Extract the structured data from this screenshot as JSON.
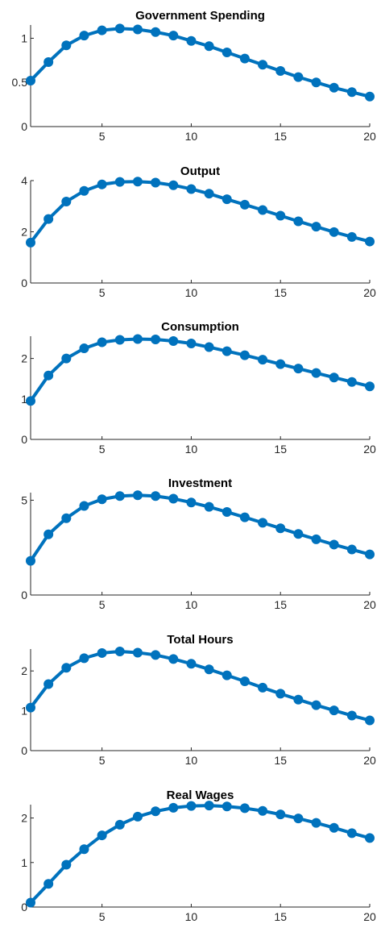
{
  "colors": {
    "series": "#0072BD",
    "axis": "#262626"
  },
  "chart_data": [
    {
      "type": "line",
      "title": "Government Spending",
      "x": [
        1,
        2,
        3,
        4,
        5,
        6,
        7,
        8,
        9,
        10,
        11,
        12,
        13,
        14,
        15,
        16,
        17,
        18,
        19,
        20
      ],
      "series": [
        {
          "values": [
            0.52,
            0.73,
            0.92,
            1.03,
            1.09,
            1.11,
            1.1,
            1.07,
            1.03,
            0.97,
            0.91,
            0.84,
            0.77,
            0.7,
            0.63,
            0.56,
            0.5,
            0.44,
            0.39,
            0.34
          ]
        }
      ],
      "xlim": [
        1,
        20
      ],
      "ylim": [
        0,
        1.15
      ],
      "xticks": [
        5,
        10,
        15,
        20
      ],
      "yticks": [
        0,
        0.5,
        1
      ],
      "ytick_labels": [
        "0",
        "0.5",
        "1"
      ]
    },
    {
      "type": "line",
      "title": "Output",
      "x": [
        1,
        2,
        3,
        4,
        5,
        6,
        7,
        8,
        9,
        10,
        11,
        12,
        13,
        14,
        15,
        16,
        17,
        18,
        19,
        20
      ],
      "series": [
        {
          "values": [
            1.58,
            2.5,
            3.18,
            3.6,
            3.85,
            3.95,
            3.96,
            3.92,
            3.82,
            3.67,
            3.49,
            3.27,
            3.06,
            2.85,
            2.63,
            2.41,
            2.2,
            1.99,
            1.8,
            1.62
          ]
        }
      ],
      "xlim": [
        1,
        20
      ],
      "ylim": [
        0,
        4
      ],
      "xticks": [
        5,
        10,
        15,
        20
      ],
      "yticks": [
        0,
        2,
        4
      ],
      "ytick_labels": [
        "0",
        "2",
        "4"
      ]
    },
    {
      "type": "line",
      "title": "Consumption",
      "x": [
        1,
        2,
        3,
        4,
        5,
        6,
        7,
        8,
        9,
        10,
        11,
        12,
        13,
        14,
        15,
        16,
        17,
        18,
        19,
        20
      ],
      "series": [
        {
          "values": [
            0.95,
            1.58,
            2.0,
            2.25,
            2.4,
            2.46,
            2.48,
            2.47,
            2.43,
            2.37,
            2.28,
            2.18,
            2.08,
            1.97,
            1.86,
            1.75,
            1.64,
            1.53,
            1.42,
            1.31
          ]
        }
      ],
      "xlim": [
        1,
        20
      ],
      "ylim": [
        0,
        2.55
      ],
      "xticks": [
        5,
        10,
        15,
        20
      ],
      "yticks": [
        0,
        1,
        2
      ],
      "ytick_labels": [
        "0",
        "1",
        "2"
      ]
    },
    {
      "type": "line",
      "title": "Investment",
      "x": [
        1,
        2,
        3,
        4,
        5,
        6,
        7,
        8,
        9,
        10,
        11,
        12,
        13,
        14,
        15,
        16,
        17,
        18,
        19,
        20
      ],
      "series": [
        {
          "values": [
            1.8,
            3.2,
            4.05,
            4.7,
            5.05,
            5.22,
            5.26,
            5.22,
            5.08,
            4.88,
            4.65,
            4.38,
            4.1,
            3.81,
            3.52,
            3.22,
            2.94,
            2.66,
            2.4,
            2.14
          ]
        }
      ],
      "xlim": [
        1,
        20
      ],
      "ylim": [
        0,
        5.4
      ],
      "xticks": [
        5,
        10,
        15,
        20
      ],
      "yticks": [
        0,
        5
      ],
      "ytick_labels": [
        "0",
        "5"
      ]
    },
    {
      "type": "line",
      "title": "Total Hours",
      "x": [
        1,
        2,
        3,
        4,
        5,
        6,
        7,
        8,
        9,
        10,
        11,
        12,
        13,
        14,
        15,
        16,
        17,
        18,
        19,
        20
      ],
      "series": [
        {
          "values": [
            1.08,
            1.67,
            2.08,
            2.32,
            2.45,
            2.49,
            2.46,
            2.4,
            2.3,
            2.18,
            2.04,
            1.89,
            1.74,
            1.58,
            1.43,
            1.28,
            1.14,
            1.01,
            0.88,
            0.76
          ]
        }
      ],
      "xlim": [
        1,
        20
      ],
      "ylim": [
        0,
        2.55
      ],
      "xticks": [
        5,
        10,
        15,
        20
      ],
      "yticks": [
        0,
        1,
        2
      ],
      "ytick_labels": [
        "0",
        "1",
        "2"
      ]
    },
    {
      "type": "line",
      "title": "Real Wages",
      "x": [
        1,
        2,
        3,
        4,
        5,
        6,
        7,
        8,
        9,
        10,
        11,
        12,
        13,
        14,
        15,
        16,
        17,
        18,
        19,
        20
      ],
      "series": [
        {
          "values": [
            0.1,
            0.52,
            0.95,
            1.3,
            1.61,
            1.85,
            2.03,
            2.15,
            2.23,
            2.27,
            2.28,
            2.26,
            2.22,
            2.16,
            2.08,
            1.99,
            1.89,
            1.78,
            1.66,
            1.55
          ]
        }
      ],
      "xlim": [
        1,
        20
      ],
      "ylim": [
        0,
        2.3
      ],
      "xticks": [
        5,
        10,
        15,
        20
      ],
      "yticks": [
        0,
        1,
        2
      ],
      "ytick_labels": [
        "0",
        "1",
        "2"
      ]
    }
  ]
}
